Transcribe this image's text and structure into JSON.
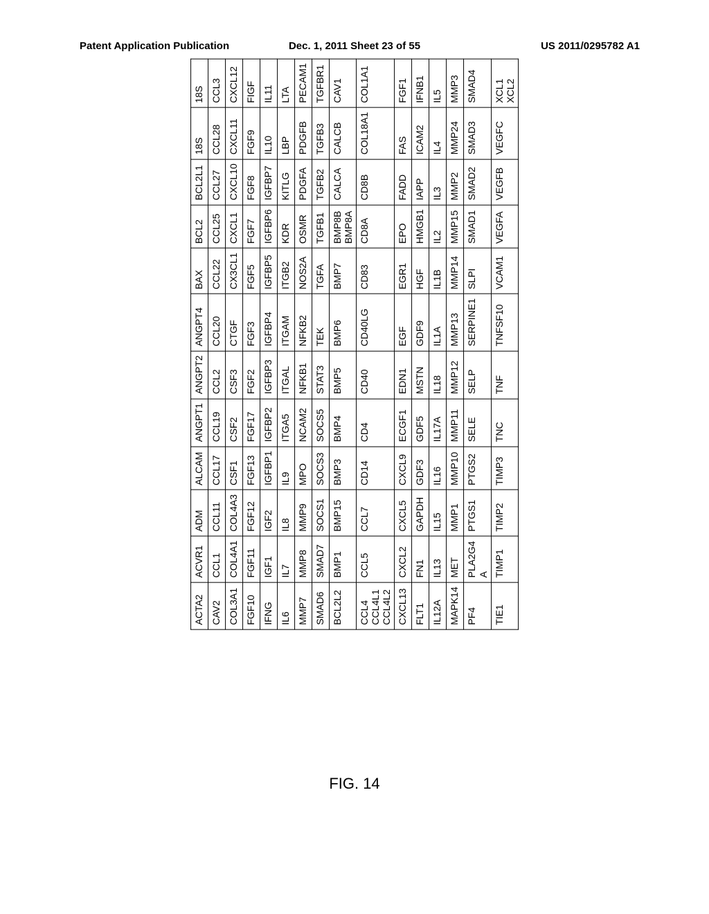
{
  "header": {
    "left": "Patent Application Publication",
    "mid": "Dec. 1, 2011   Sheet 23 of 55",
    "right": "US 2011/0295782 A1"
  },
  "figure_label": "FIG. 14",
  "table": {
    "col_classes": [
      "c0",
      "cw",
      "cn",
      "cw",
      "cw",
      "cw",
      "cw",
      "cw",
      "cw",
      "cw",
      "cw",
      "cn"
    ],
    "rows": [
      [
        "ACTA2",
        "ACVR1",
        "ADM",
        "ALCAM",
        "ANGPT1",
        "ANGPT2",
        "ANGPT4",
        "BAX",
        "BCL2",
        "BCL2L1",
        "18S",
        "18S"
      ],
      [
        "CAV2",
        "CCL1",
        "CCL11",
        "CCL17",
        "CCL19",
        "CCL2",
        "CCL20",
        "CCL22",
        "CCL25",
        "CCL27",
        "CCL28",
        "CCL3"
      ],
      [
        "COL3A1",
        "COL4A1",
        "COL4A3",
        "CSF1",
        "CSF2",
        "CSF3",
        "CTGF",
        "CX3CL1",
        "CXCL1",
        "CXCL10",
        "CXCL11",
        "CXCL12"
      ],
      [
        "FGF10",
        "FGF11",
        "FGF12",
        "FGF13",
        "FGF17",
        "FGF2",
        "FGF3",
        "FGF5",
        "FGF7",
        "FGF8",
        "FGF9",
        "FIGF"
      ],
      [
        "IFNG",
        "IGF1",
        "IGF2",
        "IGFBP1",
        "IGFBP2",
        "IGFBP3",
        "IGFBP4",
        "IGFBP5",
        "IGFBP6",
        "IGFBP7",
        "IL10",
        "IL11"
      ],
      [
        "IL6",
        "IL7",
        "IL8",
        "IL9",
        "ITGA5",
        "ITGAL",
        "ITGAM",
        "ITGB2",
        "KDR",
        "KITLG",
        "LBP",
        "LTA"
      ],
      [
        "MMP7",
        "MMP8",
        "MMP9",
        "MPO",
        "NCAM2",
        "NFKB1",
        "NFKB2",
        "NOS2A",
        "OSMR",
        "PDGFA",
        "PDGFB",
        "PECAM1"
      ],
      [
        "SMAD6",
        "SMAD7",
        "SOCS1",
        "SOCS3",
        "SOCS5",
        "STAT3",
        "TEK",
        "TGFA",
        "TGFB1",
        "TGFB2",
        "TGFB3",
        "TGFBR1"
      ],
      [
        "BCL2L2",
        "BMP1",
        "BMP15",
        "BMP3",
        "BMP4",
        "BMP5",
        "BMP6",
        "BMP7",
        "BMP8B\nBMP8A",
        "CALCA",
        "CALCB",
        "CAV1"
      ],
      [
        "CCL4\nCCL4L1\nCCL4L2",
        "CCL5",
        "CCL7",
        "CD14",
        "CD4",
        "CD40",
        "CD40LG",
        "CD83",
        "CD8A",
        "CD8B",
        "COL18A1",
        "COL1A1"
      ],
      [
        "CXCL13",
        "CXCL2",
        "CXCL5",
        "CXCL9",
        "ECGF1",
        "EDN1",
        "EGF",
        "EGR1",
        "EPO",
        "FADD",
        "FAS",
        "FGF1"
      ],
      [
        "FLT1",
        "FN1",
        "GAPDH",
        "GDF3",
        "GDF5",
        "MSTN",
        "GDF9",
        "HGF",
        "HMGB1",
        "IAPP",
        "ICAM2",
        "IFNB1"
      ],
      [
        "IL12A",
        "IL13",
        "IL15",
        "IL16",
        "IL17A",
        "IL18",
        "IL1A",
        "IL1B",
        "IL2",
        "IL3",
        "IL4",
        "IL5"
      ],
      [
        "MAPK14",
        "MET",
        "MMP1",
        "MMP10",
        "MMP11",
        "MMP12",
        "MMP13",
        "MMP14",
        "MMP15",
        "MMP2",
        "MMP24",
        "MMP3"
      ],
      [
        "PF4",
        "PLA2G4\nA",
        "PTGS1",
        "PTGS2",
        "SELE",
        "SELP",
        "SERPINE1",
        "SLPI",
        "SMAD1",
        "SMAD2",
        "SMAD3",
        "SMAD4"
      ],
      [
        "TIE1",
        "TIMP1",
        "TIMP2",
        "TIMP3",
        "TNC",
        "TNF",
        "TNFSF10",
        "VCAM1",
        "VEGFA",
        "VEGFB",
        "VEGFC",
        "XCL1\nXCL2"
      ]
    ]
  }
}
